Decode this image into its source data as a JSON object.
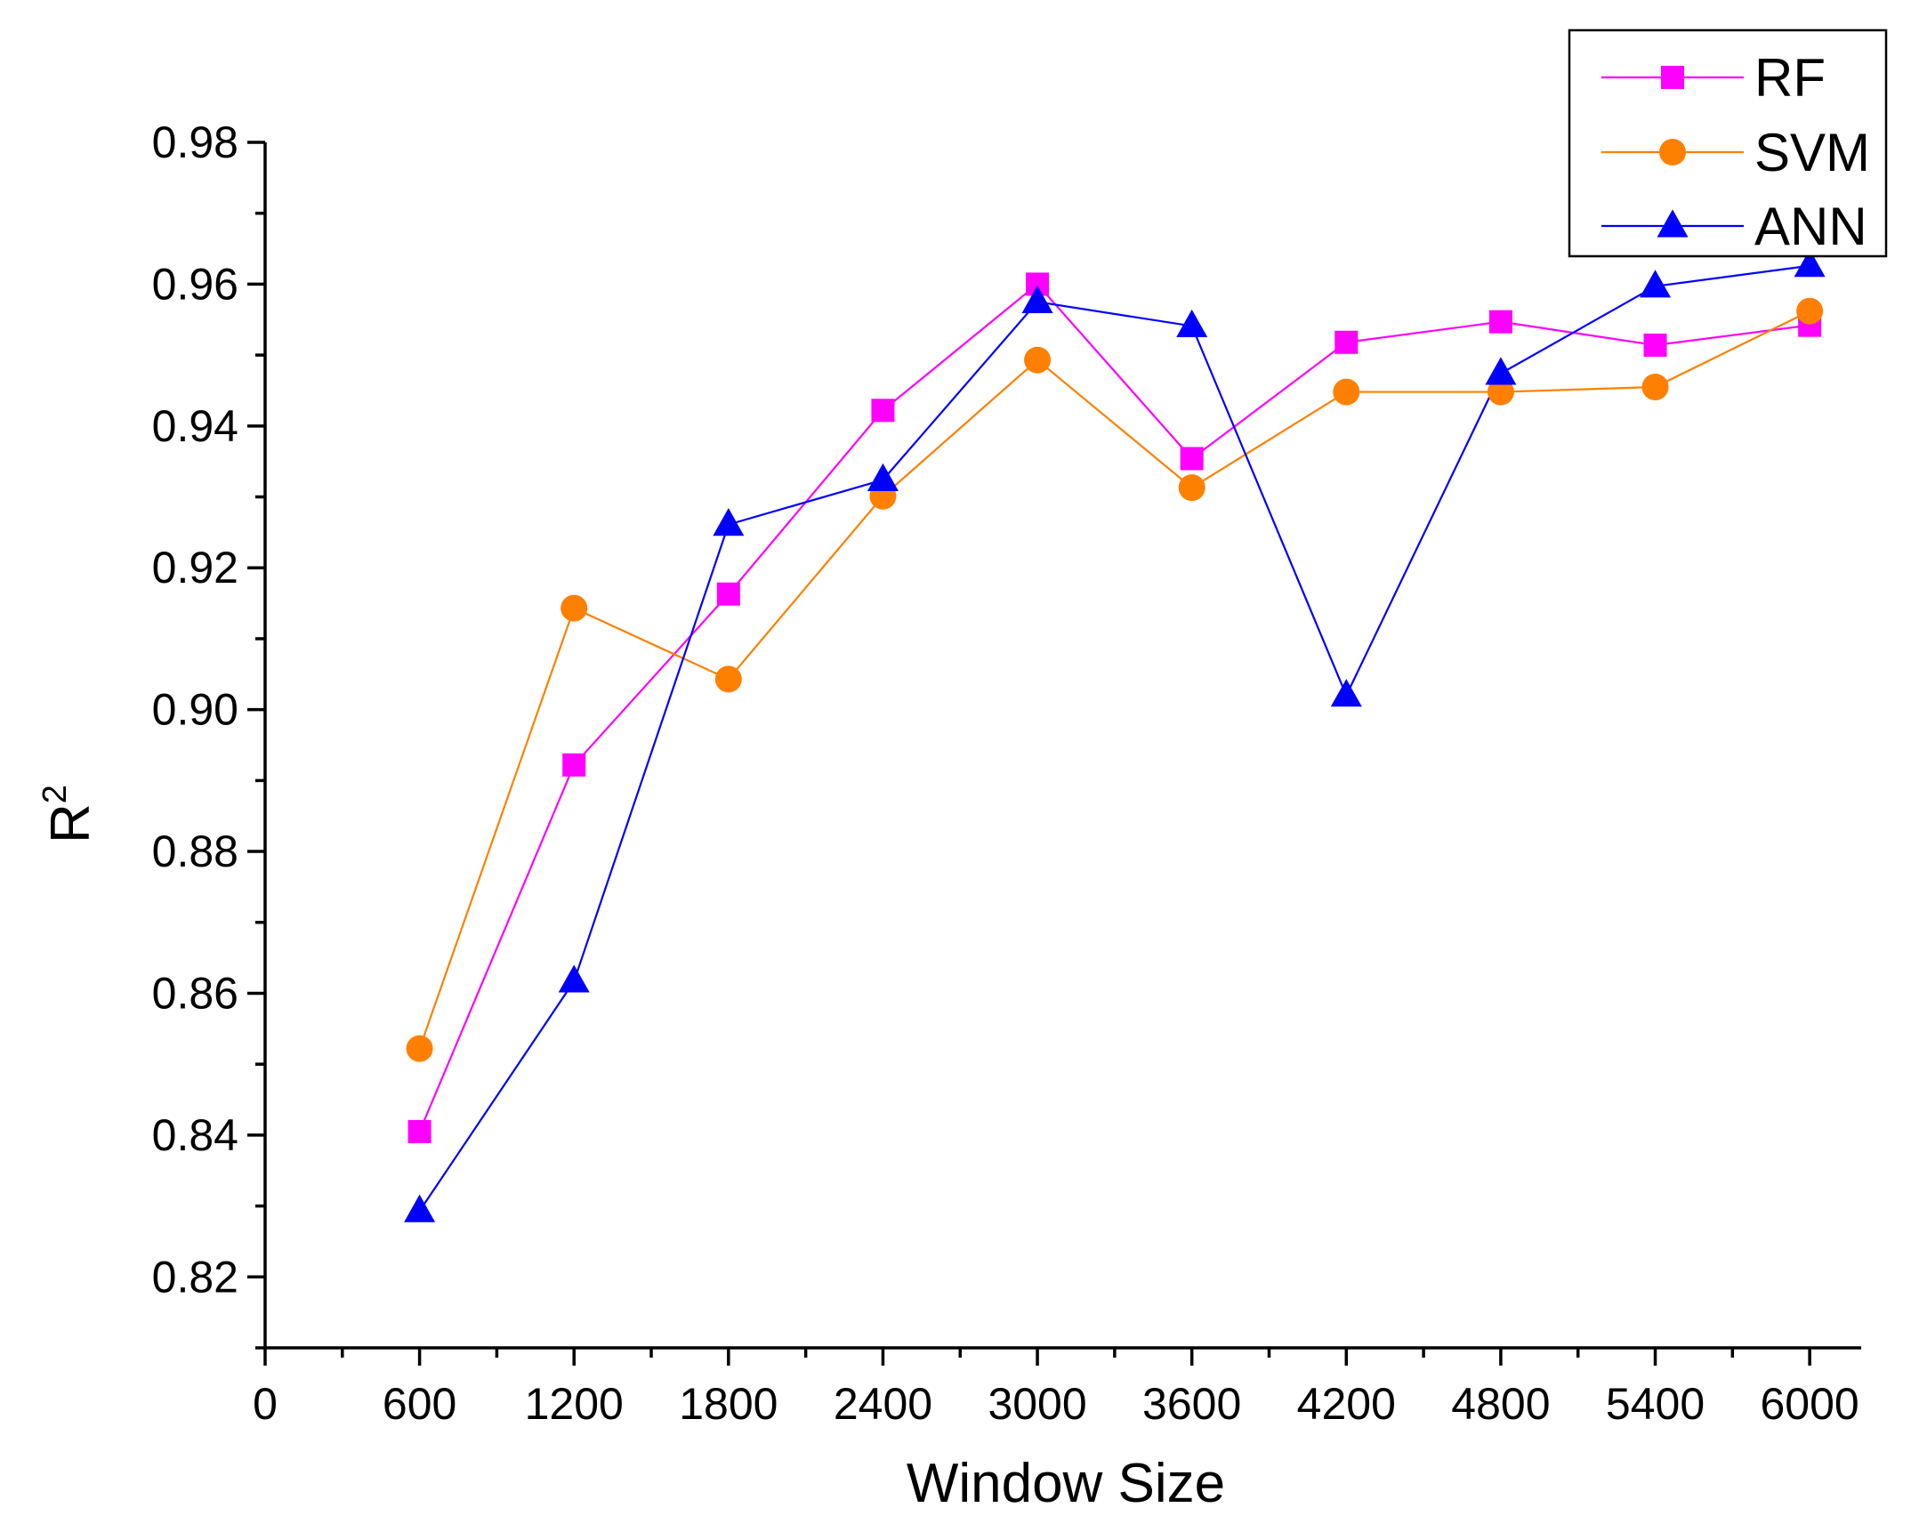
{
  "chart_data": {
    "type": "line",
    "title": "",
    "xlabel": "Window Size",
    "ylabel": "R",
    "ylabel_superscript": "2",
    "x": [
      600,
      1200,
      1800,
      2400,
      3000,
      3600,
      4200,
      4800,
      5400,
      6000
    ],
    "xlim": [
      0,
      6200
    ],
    "ylim": [
      0.81,
      0.98
    ],
    "x_ticks": [
      0,
      600,
      1200,
      1800,
      2400,
      3000,
      3600,
      4200,
      4800,
      5400,
      6000
    ],
    "x_tick_labels": [
      "0",
      "600",
      "1200",
      "1800",
      "2400",
      "3000",
      "3600",
      "4200",
      "4800",
      "5400",
      "6000"
    ],
    "y_ticks": [
      0.82,
      0.84,
      0.86,
      0.88,
      0.9,
      0.92,
      0.94,
      0.96,
      0.98
    ],
    "y_tick_labels": [
      "0.82",
      "0.84",
      "0.86",
      "0.88",
      "0.90",
      "0.92",
      "0.94",
      "0.96",
      "0.98"
    ],
    "grid": false,
    "legend_position": "top-right",
    "series": [
      {
        "name": "RF",
        "color": "#ff00ff",
        "marker": "square",
        "values": [
          0.8405,
          0.8922,
          0.9163,
          0.9422,
          0.96,
          0.9354,
          0.9518,
          0.9547,
          0.9514,
          0.9542
        ]
      },
      {
        "name": "SVM",
        "color": "#ff8000",
        "marker": "circle",
        "values": [
          0.8522,
          0.9143,
          0.9043,
          0.9301,
          0.9493,
          0.9313,
          0.9448,
          0.9448,
          0.9455,
          0.9562
        ]
      },
      {
        "name": "ANN",
        "color": "#0000ff",
        "marker": "triangle",
        "values": [
          0.8293,
          0.8617,
          0.9261,
          0.9324,
          0.9575,
          0.9541,
          0.902,
          0.9474,
          0.9597,
          0.9626
        ]
      }
    ]
  }
}
